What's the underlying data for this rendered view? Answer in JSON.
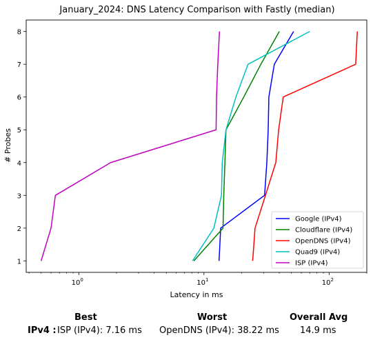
{
  "chart_data": {
    "type": "line",
    "title": "January_2024: DNS Latency Comparison with Fastly (median)",
    "xlabel": "Latency in ms",
    "ylabel": "# Probes",
    "xscale": "log",
    "xlim": [
      0.38,
      200
    ],
    "ylim": [
      0.65,
      8.35
    ],
    "x_ticks": [
      {
        "value": 1,
        "label": "10",
        "exp": "0"
      },
      {
        "value": 10,
        "label": "10",
        "exp": "1"
      },
      {
        "value": 100,
        "label": "10",
        "exp": "2"
      }
    ],
    "y_ticks": [
      1,
      2,
      3,
      4,
      5,
      6,
      7,
      8
    ],
    "grid": false,
    "legend_position": "lower-right",
    "series": [
      {
        "name": "Google (IPv4)",
        "color": "#0000ff",
        "points": [
          [
            13.2,
            1
          ],
          [
            13.6,
            2
          ],
          [
            30.5,
            3
          ],
          [
            31.8,
            4
          ],
          [
            32.6,
            5
          ],
          [
            33.0,
            6
          ],
          [
            36.5,
            7
          ],
          [
            52.0,
            8
          ]
        ]
      },
      {
        "name": "Cloudflare (IPv4)",
        "color": "#008000",
        "points": [
          [
            8.3,
            1
          ],
          [
            14.2,
            2
          ],
          [
            14.4,
            3
          ],
          [
            14.7,
            4
          ],
          [
            15.0,
            5
          ],
          [
            20.8,
            6
          ],
          [
            28.5,
            7
          ],
          [
            40.0,
            8
          ]
        ]
      },
      {
        "name": "OpenDNS (IPv4)",
        "color": "#ff0000",
        "points": [
          [
            24.5,
            1
          ],
          [
            25.6,
            2
          ],
          [
            31.0,
            3
          ],
          [
            37.5,
            4
          ],
          [
            39.5,
            5
          ],
          [
            43.0,
            6
          ],
          [
            163.0,
            7
          ],
          [
            168.0,
            8
          ]
        ]
      },
      {
        "name": "Quad9 (IPv4)",
        "color": "#00bfbf",
        "points": [
          [
            8.1,
            1
          ],
          [
            12.0,
            2
          ],
          [
            13.8,
            3
          ],
          [
            14.0,
            4
          ],
          [
            15.0,
            5
          ],
          [
            18.0,
            6
          ],
          [
            22.5,
            7
          ],
          [
            70.0,
            8
          ]
        ]
      },
      {
        "name": "ISP (IPv4)",
        "color": "#bf00bf",
        "points": [
          [
            0.5,
            1
          ],
          [
            0.6,
            2
          ],
          [
            0.65,
            3
          ],
          [
            1.8,
            4
          ],
          [
            12.5,
            5
          ],
          [
            12.6,
            6
          ],
          [
            12.9,
            7
          ],
          [
            13.3,
            8
          ]
        ]
      }
    ]
  },
  "summary": {
    "headers": {
      "best": "Best",
      "worst": "Worst",
      "avg": "Overall Avg"
    },
    "row_label": "IPv4 :",
    "best": "ISP (IPv4): 7.16 ms",
    "worst": "OpenDNS (IPv4): 38.22 ms",
    "avg": "14.9 ms"
  }
}
